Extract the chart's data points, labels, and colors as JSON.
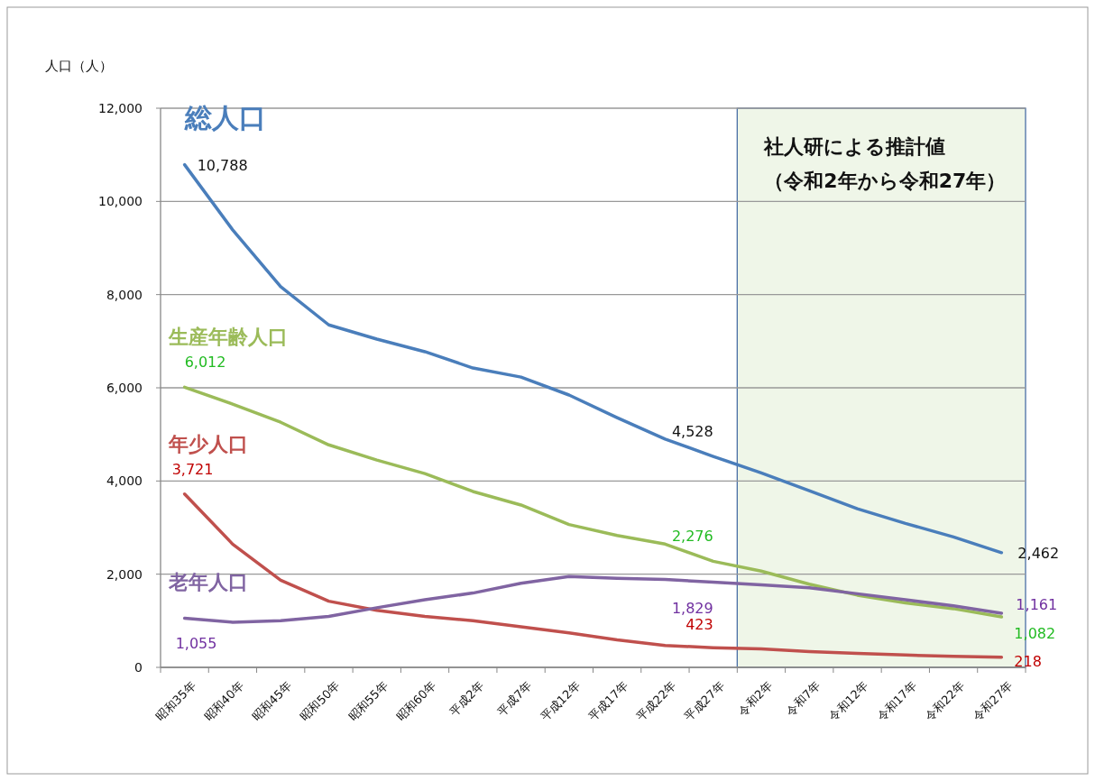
{
  "chart_data": {
    "type": "line",
    "ylabel": "人口（人）",
    "categories": [
      "昭和35年",
      "昭和40年",
      "昭和45年",
      "昭和50年",
      "昭和55年",
      "昭和60年",
      "平成2年",
      "平成7年",
      "平成12年",
      "平成17年",
      "平成22年",
      "平成27年",
      "令和2年",
      "令和7年",
      "令和12年",
      "令和17年",
      "令和22年",
      "令和27年"
    ],
    "series": [
      {
        "name": "総人口",
        "color": "#4a7ebb",
        "values": [
          10788,
          9390,
          8170,
          7350,
          7045,
          6775,
          6425,
          6230,
          5845,
          5360,
          4900,
          4528,
          4175,
          3790,
          3405,
          3090,
          2800,
          2462
        ],
        "value_labels": [
          "10,788",
          null,
          null,
          null,
          null,
          null,
          null,
          null,
          null,
          null,
          null,
          "4,528",
          null,
          null,
          null,
          null,
          null,
          "2,462"
        ]
      },
      {
        "name": "生産年齢人口",
        "color": "#9bbb59",
        "values": [
          6012,
          5650,
          5260,
          4775,
          4450,
          4160,
          3775,
          3485,
          3065,
          2830,
          2645,
          2276,
          2065,
          1785,
          1550,
          1385,
          1260,
          1082
        ],
        "value_labels": [
          "6,012",
          null,
          null,
          null,
          null,
          null,
          null,
          null,
          null,
          null,
          null,
          "2,276",
          null,
          null,
          null,
          null,
          null,
          "1,082"
        ]
      },
      {
        "name": "年少人口",
        "color": "#c0504d",
        "values": [
          3721,
          2645,
          1870,
          1420,
          1225,
          1095,
          1000,
          870,
          740,
          590,
          470,
          423,
          395,
          340,
          300,
          265,
          235,
          218
        ],
        "value_labels": [
          "3,721",
          null,
          null,
          null,
          null,
          null,
          null,
          null,
          null,
          null,
          null,
          "423",
          null,
          null,
          null,
          null,
          null,
          "218"
        ]
      },
      {
        "name": "老年人口",
        "color": "#8064a2",
        "values": [
          1055,
          970,
          1000,
          1095,
          1280,
          1450,
          1595,
          1805,
          1950,
          1910,
          1885,
          1829,
          1770,
          1710,
          1580,
          1450,
          1320,
          1161
        ],
        "value_labels": [
          "1,055",
          null,
          null,
          null,
          null,
          null,
          null,
          null,
          null,
          null,
          null,
          "1,829",
          null,
          null,
          null,
          null,
          null,
          "1,161"
        ]
      }
    ],
    "ylim": [
      0,
      12000
    ],
    "yticks": [
      0,
      {
        "value": 2000,
        "label": "2,000"
      },
      {
        "value": 4000,
        "label": "4,000"
      },
      {
        "value": 6000,
        "label": "6,000"
      },
      {
        "value": 8000,
        "label": "8,000"
      },
      {
        "value": 10000,
        "label": "10,000"
      },
      {
        "value": 12000,
        "label": "12,000"
      }
    ],
    "bands": [
      {
        "axis": "x",
        "from": "令和2年",
        "to": "令和27年",
        "label": "社人研による推計値（令和2年から令和27年）",
        "color": "#eff6e8"
      }
    ],
    "grid": "y",
    "legend": false,
    "marker": "none",
    "line_style": "solid"
  }
}
